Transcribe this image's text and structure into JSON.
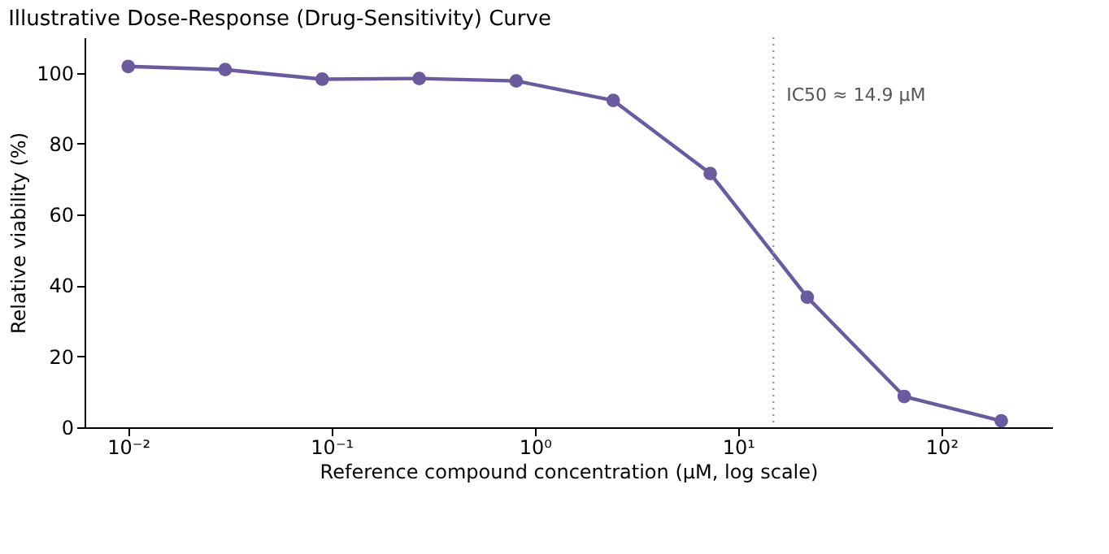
{
  "chart_data": {
    "type": "line",
    "title": "Illustrative Dose-Response (Drug-Sensitivity) Curve",
    "xlabel": "Reference compound concentration (μM, log scale)",
    "ylabel": "Relative viability (%)",
    "x": [
      0.01,
      0.03,
      0.09,
      0.27,
      0.81,
      2.43,
      7.29,
      21.87,
      65.61,
      196.83
    ],
    "series": [
      {
        "color": "#6a5a9e",
        "values": [
          101.8,
          100.9,
          98.2,
          98.4,
          97.7,
          92.2,
          71.6,
          36.7,
          8.7,
          1.8
        ]
      }
    ],
    "log": "x",
    "xlim": [
      0.0061,
      350
    ],
    "xticks": [
      {
        "value": 0.01,
        "label": "10⁻²"
      },
      {
        "value": 0.1,
        "label": "10⁻¹"
      },
      {
        "value": 1,
        "label": "10⁰"
      },
      {
        "value": 10,
        "label": "10¹"
      },
      {
        "value": 100,
        "label": "10²"
      }
    ],
    "ylim": [
      0,
      110
    ],
    "yticks": [
      0,
      20,
      40,
      60,
      80,
      100
    ],
    "grid": false,
    "marker": "circle",
    "line_style": "solid",
    "ref_lines": [
      {
        "axis": "x",
        "value": 14.9,
        "label": "IC50 ≈ 14.9 μM",
        "color": "#999999",
        "line_style": "dotted"
      }
    ]
  }
}
